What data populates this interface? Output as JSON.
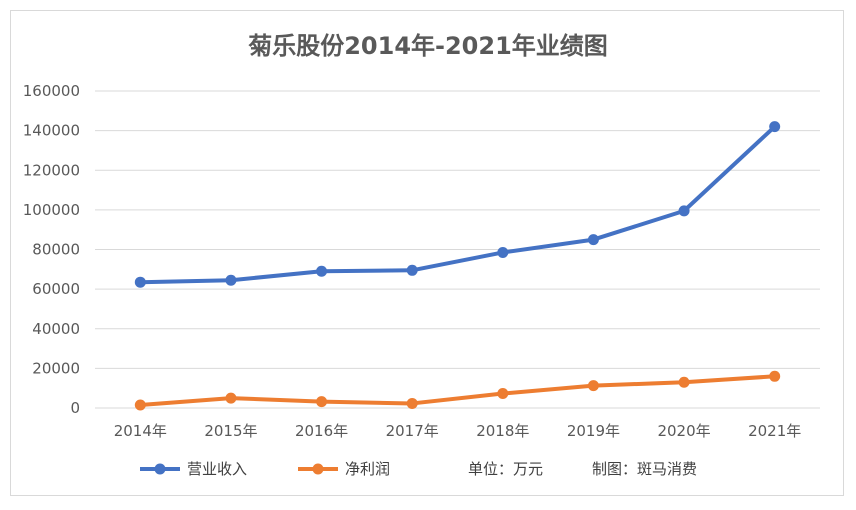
{
  "chart_data": {
    "type": "line",
    "title": "菊乐股份2014年-2021年业绩图",
    "categories": [
      "2014年",
      "2015年",
      "2016年",
      "2017年",
      "2018年",
      "2019年",
      "2020年",
      "2021年"
    ],
    "ylim": [
      0,
      160000
    ],
    "yticks": [
      0,
      20000,
      40000,
      60000,
      80000,
      100000,
      120000,
      140000,
      160000
    ],
    "grid": true,
    "legend_position": "bottom",
    "series": [
      {
        "name": "营业收入",
        "color": "#4472c4",
        "values": [
          63500,
          64500,
          69000,
          69500,
          78500,
          85000,
          99500,
          142000
        ]
      },
      {
        "name": "净利润",
        "color": "#ed7d31",
        "values": [
          1500,
          5000,
          3200,
          2300,
          7300,
          11300,
          13000,
          16000
        ]
      }
    ],
    "notes": [
      "单位：万元",
      "制图：斑马消费"
    ]
  }
}
